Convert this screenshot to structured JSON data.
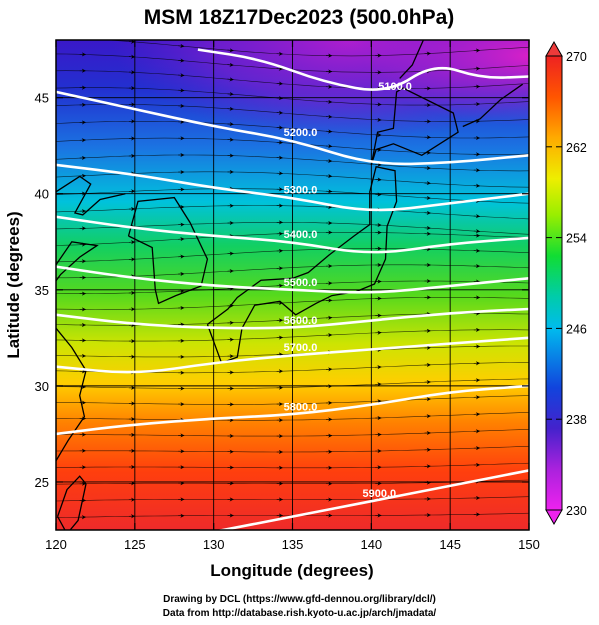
{
  "credits": {
    "line1": "Drawing by DCL (https://www.gfd-dennou.org/library/dcl/)",
    "line2": "Data from http://database.rish.kyoto-u.ac.jp/arch/jmadata/"
  },
  "chart_data": {
    "type": "heatmap",
    "title": "MSM 18Z17Dec2023 (500.0hPa)",
    "xlabel": "Longitude (degrees)",
    "ylabel": "Latitude  (degrees)",
    "xlim": [
      120,
      150
    ],
    "ylim": [
      22.5,
      48
    ],
    "x_ticks": [
      120,
      125,
      130,
      135,
      140,
      145,
      150
    ],
    "y_ticks": [
      25,
      30,
      35,
      40,
      45
    ],
    "grid": true,
    "colorbar": {
      "range": [
        230,
        270
      ],
      "ticks": [
        230,
        238,
        246,
        254,
        262,
        270
      ],
      "placement": "right",
      "colors": [
        "#ee22ee",
        "#aa22dd",
        "#4422cc",
        "#1144dd",
        "#00bbee",
        "#00ccaa",
        "#11dd33",
        "#99ee00",
        "#eeee00",
        "#ffaa00",
        "#ff5500",
        "#ee2222"
      ]
    },
    "contours": {
      "color": "#ffffff",
      "lines": [
        {
          "label": "5100.0",
          "points": [
            [
              129,
              47.5
            ],
            [
              133,
              47
            ],
            [
              137,
              45.8
            ],
            [
              141,
              45.2
            ],
            [
              144,
              46.8
            ],
            [
              147,
              46.0
            ],
            [
              150,
              46.1
            ]
          ]
        },
        {
          "label": "5200.0",
          "points": [
            [
              120,
              45.3
            ],
            [
              125,
              44.4
            ],
            [
              130,
              43.5
            ],
            [
              135,
              42.8
            ],
            [
              140,
              41.5
            ],
            [
              145,
              41.6
            ],
            [
              150,
              42.0
            ]
          ]
        },
        {
          "label": "5300.0",
          "points": [
            [
              120,
              41.5
            ],
            [
              125,
              41.0
            ],
            [
              130,
              40.3
            ],
            [
              135,
              39.8
            ],
            [
              140,
              39.0
            ],
            [
              145,
              39.5
            ],
            [
              150,
              40.0
            ]
          ]
        },
        {
          "label": "5400.0",
          "points": [
            [
              120,
              38.8
            ],
            [
              125,
              38.2
            ],
            [
              130,
              37.8
            ],
            [
              135,
              37.5
            ],
            [
              140,
              36.8
            ],
            [
              145,
              37.4
            ],
            [
              150,
              37.7
            ]
          ]
        },
        {
          "label": "5500.0",
          "points": [
            [
              120,
              36.2
            ],
            [
              125,
              35.6
            ],
            [
              130,
              35.2
            ],
            [
              135,
              35.0
            ],
            [
              140,
              34.8
            ],
            [
              145,
              35.2
            ],
            [
              150,
              35.6
            ]
          ]
        },
        {
          "label": "5600.0",
          "points": [
            [
              120,
              33.7
            ],
            [
              125,
              33.2
            ],
            [
              130,
              33.0
            ],
            [
              135,
              33.0
            ],
            [
              140,
              33.4
            ],
            [
              145,
              33.8
            ],
            [
              150,
              34.0
            ]
          ]
        },
        {
          "label": "5700.0",
          "points": [
            [
              120,
              31.0
            ],
            [
              125,
              30.6
            ],
            [
              130,
              31.2
            ],
            [
              135,
              31.6
            ],
            [
              140,
              31.9
            ],
            [
              145,
              32.2
            ],
            [
              150,
              32.5
            ]
          ]
        },
        {
          "label": "5800.0",
          "points": [
            [
              120,
              27.5
            ],
            [
              125,
              28.0
            ],
            [
              130,
              28.3
            ],
            [
              135,
              28.5
            ],
            [
              140,
              29.0
            ],
            [
              145,
              29.7
            ],
            [
              150,
              30.0
            ]
          ]
        },
        {
          "label": "5900.0",
          "points": [
            [
              124,
              21.5
            ],
            [
              130,
              22.4
            ],
            [
              135,
              23.2
            ],
            [
              140,
              24.0
            ],
            [
              145,
              24.8
            ],
            [
              150,
              25.6
            ]
          ]
        }
      ]
    },
    "vectors": "wind streamlines with arrowheads, predominantly westerly",
    "temperature_field": [
      {
        "lat": 48,
        "value": 234
      },
      {
        "lat": 45,
        "value": 236
      },
      {
        "lat": 42,
        "value": 241
      },
      {
        "lat": 39,
        "value": 248
      },
      {
        "lat": 36,
        "value": 253
      },
      {
        "lat": 33,
        "value": 258
      },
      {
        "lat": 30,
        "value": 262
      },
      {
        "lat": 27,
        "value": 265
      },
      {
        "lat": 24,
        "value": 268
      },
      {
        "lat": 22.5,
        "value": 269
      }
    ]
  }
}
